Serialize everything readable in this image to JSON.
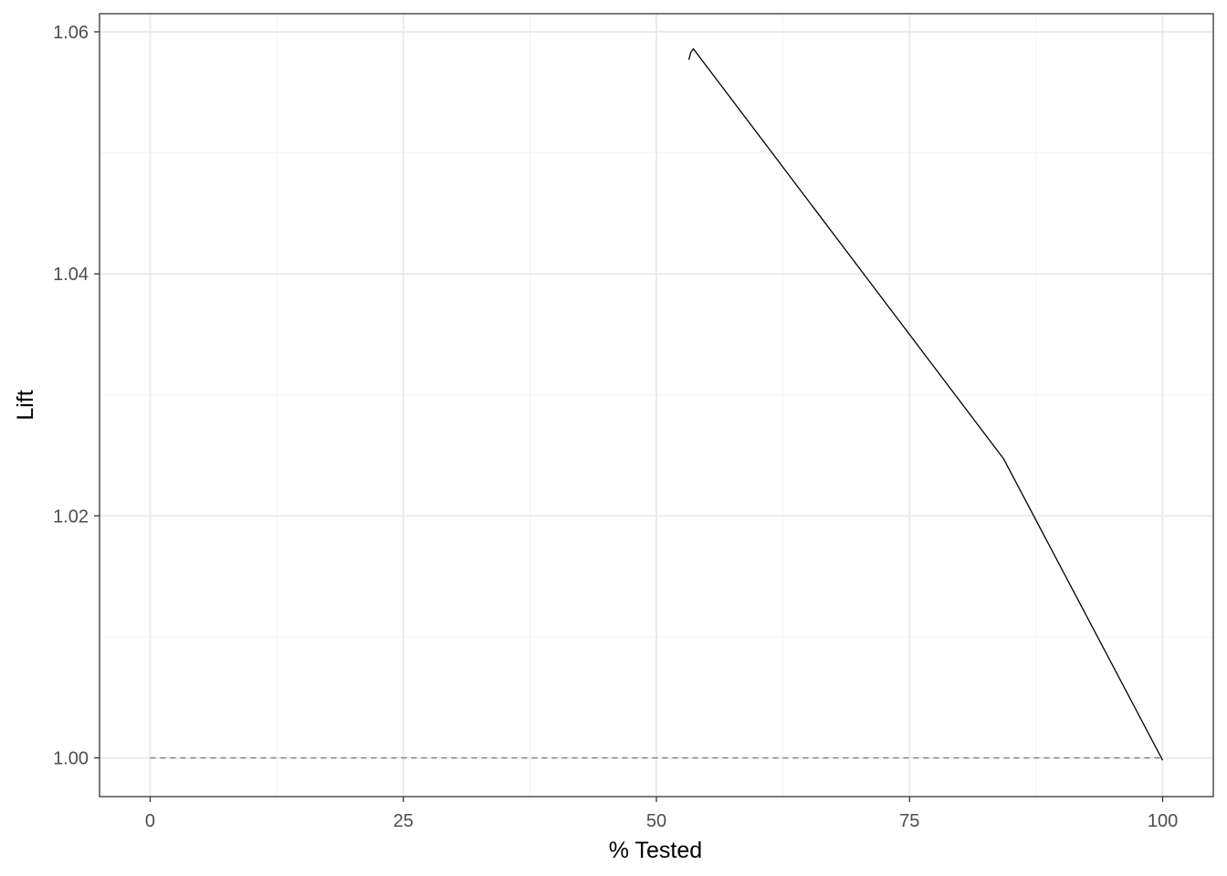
{
  "chart_data": {
    "type": "line",
    "x_label": "% Tested",
    "y_label": "Lift",
    "x": [
      53.2,
      53.4,
      53.65,
      84.3,
      100
    ],
    "values": [
      1.0577,
      1.0583,
      1.0586,
      1.0247,
      0.9998
    ],
    "color": "#000000",
    "reference": {
      "x": [
        0,
        100
      ],
      "y": [
        1,
        1
      ],
      "color": "#7f7f7f",
      "dashed": true
    },
    "xlim": [
      -5,
      105
    ],
    "xticks": [
      0,
      25,
      50,
      75,
      100
    ],
    "ylim": [
      0.9968,
      1.0615
    ],
    "yticks": [
      {
        "value": 1,
        "label": "1.00"
      },
      1.02,
      1.04,
      1.06
    ],
    "x_minor_grid": [
      12.5,
      37.5,
      62.5,
      87.5
    ],
    "y_minor_grid": [
      1.01,
      1.03,
      1.05
    ],
    "grid": true
  }
}
